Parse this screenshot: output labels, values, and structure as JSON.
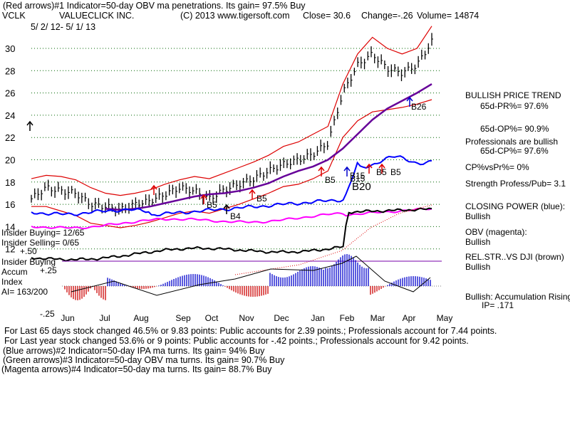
{
  "header": {
    "line1": "(Red arrows)#1 Indicator=50-day OBV ma penetrations. Its gain= 97.5% Buy",
    "ticker": "VCLK",
    "company": "VALUECLICK INC.",
    "copyright": "(C) 2013 www.tigersoft.com",
    "close": "Close=  30.6",
    "change": "Change=-.26",
    "volume": "Volume= 14874",
    "date_range": "5/ 2/ 12-  5/ 1/ 13"
  },
  "left_labels": {
    "insider_buying_count": "Insider Buying= 12/65",
    "insider_selling_count": "Insider Selling= 0/65",
    "insider_buying_line": "Insider Buying",
    "plus50": "+.50",
    "plus25": "+.25",
    "accum": "Accum",
    "index": "Index",
    "ai": "AI= 163/200",
    "minus25": "-.25"
  },
  "right_panel": {
    "bullish_trend": "BULLISH PRICE TREND",
    "pr": "65d-PR%= 97.6%",
    "op": "65d-OP%= 90.9%",
    "pros_bullish": "Professionals are bullish",
    "cp": "65d-CP%= 97.6%",
    "cpvspr": "CP%vsPr%=  0%",
    "strength": "Strength Profess/Pub= 3.1",
    "closing_power": "CLOSING POWER (blue):",
    "cp_state": "Bullish",
    "obv": "OBV (magenta):",
    "obv_state": "Bullish",
    "relstr": "REL.STR..VS DJI (brown)",
    "relstr_state": "Bullish",
    "accum_rising": "Bullish: Accumulation Rising",
    "ip": "IP=  .171"
  },
  "footer": {
    "line1": "For Last 65 days stock changed  46.5% or  9.83 points:  Public accounts for  2.39 points.;  Professionals account for  7.44 points.",
    "line2": "For Last year stock changed  53.6% or  9 points:  Public accounts for -.42 points.;  Professionals account for  9.42 points.",
    "line3": "(Blue arrows)#2 Indicator=50-day IPA ma turns. Its gain= 94% Buy",
    "line4": "(Green arrows)#3 Indicator=50-day OBV ma turns. Its gain= 90.7% Buy",
    "line5": "(Magenta arrows)#4 Indicator=50-day ma turns. Its gain= 88.7% Buy"
  },
  "colors": {
    "price": "#000000",
    "band": "#dd0000",
    "ma": "#660099",
    "closing_power": "#0000ff",
    "obv": "#ff00ff",
    "relstr": "#000000",
    "accum": "#0000cc",
    "accum_neg": "#cc0000",
    "grid": "#006600",
    "insider_line": "#7700aa"
  },
  "chart_data": {
    "type": "line",
    "title": "VALUECLICK INC. (VCLK)",
    "x_tick_labels": [
      "Jun",
      "Jul",
      "Aug",
      "Sep",
      "Oct",
      "Nov",
      "Dec",
      "Jan",
      "Feb",
      "Mar",
      "Apr",
      "May"
    ],
    "y_tick_labels": [
      "30",
      "28",
      "26",
      "24",
      "22",
      "20",
      "18",
      "16",
      "14",
      "12"
    ],
    "ylim": [
      11,
      32
    ],
    "series": [
      {
        "name": "Close",
        "values": [
          16.5,
          17.5,
          17.2,
          17.0,
          16.0,
          15.8,
          15.5,
          16.0,
          16.3,
          16.9,
          17.5,
          17.2,
          16.5,
          17.3,
          17.8,
          18.3,
          19.0,
          19.6,
          20.0,
          20.5,
          21.5,
          26.0,
          28.5,
          29.5,
          28.2,
          27.8,
          28.5,
          30.6
        ]
      },
      {
        "name": "50-day MA",
        "values": [
          null,
          null,
          null,
          null,
          null,
          15.6,
          15.5,
          15.6,
          15.8,
          16.1,
          16.4,
          16.7,
          16.9,
          17.0,
          17.2,
          17.5,
          17.9,
          18.5,
          19.0,
          19.4,
          20.0,
          21.0,
          22.3,
          23.6,
          24.6,
          25.3,
          26.0,
          26.8
        ]
      },
      {
        "name": "Upper band",
        "values": [
          18.3,
          18.6,
          18.5,
          18.2,
          17.5,
          17.0,
          16.8,
          17.0,
          17.3,
          17.8,
          18.2,
          18.5,
          18.3,
          18.8,
          19.3,
          19.8,
          20.4,
          21.2,
          21.6,
          22.3,
          23.0,
          26.8,
          29.5,
          31.0,
          30.0,
          29.5,
          30.0,
          32.0
        ]
      },
      {
        "name": "Lower band",
        "values": [
          15.8,
          15.8,
          15.4,
          15.0,
          14.3,
          14.1,
          13.9,
          14.1,
          14.4,
          14.8,
          15.2,
          15.4,
          15.2,
          15.6,
          16.0,
          16.5,
          17.0,
          17.6,
          17.8,
          18.3,
          19.0,
          22.0,
          23.5,
          24.3,
          24.5,
          24.7,
          25.0,
          25.4
        ]
      }
    ],
    "indicators": {
      "closing_power_label": "CLOSING POWER (blue)",
      "obv_label": "OBV (magenta)",
      "relstr_label": "REL.STR..VS DJI (brown)",
      "accum_label": "Accum Index",
      "accum_range": [
        -0.25,
        0.5
      ]
    },
    "annotations": [
      {
        "text": "B5",
        "near": "Oct"
      },
      {
        "text": "B4",
        "near": "Oct"
      },
      {
        "text": "B5",
        "near": "Nov"
      },
      {
        "text": "B5",
        "near": "Jan"
      },
      {
        "text": "B15",
        "near": "Feb"
      },
      {
        "text": "B5",
        "near": "Feb"
      },
      {
        "text": "B5",
        "near": "Mar"
      },
      {
        "text": "B15",
        "near": "Mar"
      },
      {
        "text": "B20",
        "near": "Feb"
      },
      {
        "text": "B26",
        "near": "Apr"
      }
    ]
  }
}
